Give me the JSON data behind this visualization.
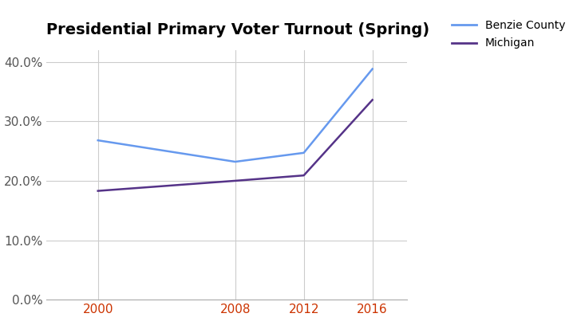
{
  "title": "Presidential Primary Voter Turnout (Spring)",
  "years": [
    2000,
    2008,
    2012,
    2016
  ],
  "benzie_values": [
    0.268,
    0.232,
    0.247,
    0.388
  ],
  "michigan_values": [
    0.183,
    0.2,
    0.209,
    0.336
  ],
  "benzie_color": "#6699ee",
  "michigan_color": "#553388",
  "benzie_label": "Benzie County",
  "michigan_label": "Michigan",
  "ylim": [
    0.0,
    0.42
  ],
  "yticks": [
    0.0,
    0.1,
    0.2,
    0.3,
    0.4
  ],
  "xticks": [
    2000,
    2008,
    2012,
    2016
  ],
  "xlim": [
    1997,
    2018
  ],
  "background_color": "#ffffff",
  "grid_color": "#cccccc",
  "title_fontsize": 14,
  "legend_fontsize": 10,
  "tick_fontsize": 11,
  "xtick_color": "#cc3300",
  "ytick_color": "#555555"
}
